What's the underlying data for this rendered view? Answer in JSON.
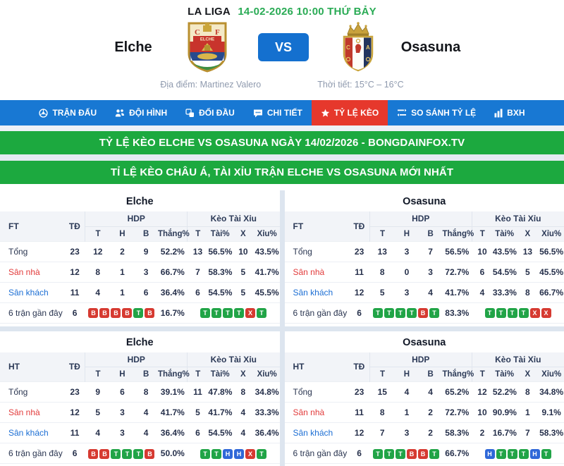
{
  "header": {
    "league": "LA LIGA",
    "datetime": "14-02-2026 10:00 THỨ BẢY",
    "home_team": "Elche",
    "away_team": "Osasuna",
    "vs_label": "VS",
    "venue": "Địa điểm: Martinez Valero",
    "weather": "Thời tiết: 15°C – 16°C",
    "home_crest_icon": "elche-crest-icon",
    "away_crest_icon": "osasuna-crest-icon"
  },
  "nav": {
    "tabs": [
      {
        "label": "TRẬN ĐẤU",
        "icon": "soccer-ball-icon",
        "active": false
      },
      {
        "label": "ĐỘI HÌNH",
        "icon": "lineup-icon",
        "active": false
      },
      {
        "label": "ĐỐI ĐẦU",
        "icon": "head-to-head-icon",
        "active": false
      },
      {
        "label": "CHI TIẾT",
        "icon": "comment-icon",
        "active": false
      },
      {
        "label": "TỶ LỆ KÈO",
        "icon": "star-icon",
        "active": true
      },
      {
        "label": "SO SÁNH TỶ LỆ",
        "icon": "compare-list-icon",
        "active": false
      },
      {
        "label": "BXH",
        "icon": "bar-chart-icon",
        "active": false
      }
    ]
  },
  "banners": [
    "TỶ LỆ KÈO ELCHE VS OSASUNA NGÀY 14/02/2026 - BONGDAINFOX.TV",
    "TỈ LỆ KÈO CHÂU Á, TÀI XỈU TRẬN ELCHE VS OSASUNA MỚI NHẤT"
  ],
  "table_headers": {
    "td": "TĐ",
    "hdp_group": "HDP",
    "tx_group": "Kèo Tài Xỉu",
    "sub": [
      "T",
      "H",
      "B",
      "Thắng%",
      "T",
      "Tài%",
      "X",
      "Xỉu%"
    ]
  },
  "tables": [
    {
      "team": "Elche",
      "period": "FT",
      "rows": [
        {
          "type": "total",
          "label": "Tổng",
          "td": "23",
          "hdp": [
            "12",
            "2",
            "9"
          ],
          "win": "52.2%",
          "tx": [
            "13",
            "56.5%",
            "10",
            "43.5%"
          ]
        },
        {
          "type": "home",
          "label": "Sân nhà",
          "td": "12",
          "hdp": [
            "8",
            "1",
            "3"
          ],
          "win": "66.7%",
          "tx": [
            "7",
            "58.3%",
            "5",
            "41.7%"
          ]
        },
        {
          "type": "away",
          "label": "Sân khách",
          "td": "11",
          "hdp": [
            "4",
            "1",
            "6"
          ],
          "win": "36.4%",
          "tx": [
            "6",
            "54.5%",
            "5",
            "45.5%"
          ]
        }
      ],
      "recent": {
        "label": "6 trận gần đây",
        "td": "6",
        "win": "16.7%",
        "hdp_badges": [
          {
            "t": "B",
            "c": "r"
          },
          {
            "t": "B",
            "c": "r"
          },
          {
            "t": "B",
            "c": "r"
          },
          {
            "t": "B",
            "c": "r"
          },
          {
            "t": "T",
            "c": "g"
          },
          {
            "t": "B",
            "c": "r"
          }
        ],
        "tx_badges": [
          {
            "t": "T",
            "c": "g"
          },
          {
            "t": "T",
            "c": "g"
          },
          {
            "t": "T",
            "c": "g"
          },
          {
            "t": "T",
            "c": "g"
          },
          {
            "t": "X",
            "c": "r"
          },
          {
            "t": "T",
            "c": "g"
          }
        ]
      }
    },
    {
      "team": "Osasuna",
      "period": "FT",
      "rows": [
        {
          "type": "total",
          "label": "Tổng",
          "td": "23",
          "hdp": [
            "13",
            "3",
            "7"
          ],
          "win": "56.5%",
          "tx": [
            "10",
            "43.5%",
            "13",
            "56.5%"
          ]
        },
        {
          "type": "home",
          "label": "Sân nhà",
          "td": "11",
          "hdp": [
            "8",
            "0",
            "3"
          ],
          "win": "72.7%",
          "tx": [
            "6",
            "54.5%",
            "5",
            "45.5%"
          ]
        },
        {
          "type": "away",
          "label": "Sân khách",
          "td": "12",
          "hdp": [
            "5",
            "3",
            "4"
          ],
          "win": "41.7%",
          "tx": [
            "4",
            "33.3%",
            "8",
            "66.7%"
          ]
        }
      ],
      "recent": {
        "label": "6 trận gần đây",
        "td": "6",
        "win": "83.3%",
        "hdp_badges": [
          {
            "t": "T",
            "c": "g"
          },
          {
            "t": "T",
            "c": "g"
          },
          {
            "t": "T",
            "c": "g"
          },
          {
            "t": "T",
            "c": "g"
          },
          {
            "t": "B",
            "c": "r"
          },
          {
            "t": "T",
            "c": "g"
          }
        ],
        "tx_badges": [
          {
            "t": "T",
            "c": "g"
          },
          {
            "t": "T",
            "c": "g"
          },
          {
            "t": "T",
            "c": "g"
          },
          {
            "t": "T",
            "c": "g"
          },
          {
            "t": "X",
            "c": "r"
          },
          {
            "t": "X",
            "c": "r"
          }
        ]
      }
    },
    {
      "team": "Elche",
      "period": "HT",
      "rows": [
        {
          "type": "total",
          "label": "Tổng",
          "td": "23",
          "hdp": [
            "9",
            "6",
            "8"
          ],
          "win": "39.1%",
          "tx": [
            "11",
            "47.8%",
            "8",
            "34.8%"
          ]
        },
        {
          "type": "home",
          "label": "Sân nhà",
          "td": "12",
          "hdp": [
            "5",
            "3",
            "4"
          ],
          "win": "41.7%",
          "tx": [
            "5",
            "41.7%",
            "4",
            "33.3%"
          ]
        },
        {
          "type": "away",
          "label": "Sân khách",
          "td": "11",
          "hdp": [
            "4",
            "3",
            "4"
          ],
          "win": "36.4%",
          "tx": [
            "6",
            "54.5%",
            "4",
            "36.4%"
          ]
        }
      ],
      "recent": {
        "label": "6 trận gần đây",
        "td": "6",
        "win": "50.0%",
        "hdp_badges": [
          {
            "t": "B",
            "c": "r"
          },
          {
            "t": "B",
            "c": "r"
          },
          {
            "t": "T",
            "c": "g"
          },
          {
            "t": "T",
            "c": "g"
          },
          {
            "t": "T",
            "c": "g"
          },
          {
            "t": "B",
            "c": "r"
          }
        ],
        "tx_badges": [
          {
            "t": "T",
            "c": "g"
          },
          {
            "t": "T",
            "c": "g"
          },
          {
            "t": "H",
            "c": "b"
          },
          {
            "t": "H",
            "c": "b"
          },
          {
            "t": "X",
            "c": "r"
          },
          {
            "t": "T",
            "c": "g"
          }
        ]
      }
    },
    {
      "team": "Osasuna",
      "period": "HT",
      "rows": [
        {
          "type": "total",
          "label": "Tổng",
          "td": "23",
          "hdp": [
            "15",
            "4",
            "4"
          ],
          "win": "65.2%",
          "tx": [
            "12",
            "52.2%",
            "8",
            "34.8%"
          ]
        },
        {
          "type": "home",
          "label": "Sân nhà",
          "td": "11",
          "hdp": [
            "8",
            "1",
            "2"
          ],
          "win": "72.7%",
          "tx": [
            "10",
            "90.9%",
            "1",
            "9.1%"
          ]
        },
        {
          "type": "away",
          "label": "Sân khách",
          "td": "12",
          "hdp": [
            "7",
            "3",
            "2"
          ],
          "win": "58.3%",
          "tx": [
            "2",
            "16.7%",
            "7",
            "58.3%"
          ]
        }
      ],
      "recent": {
        "label": "6 trận gần đây",
        "td": "6",
        "win": "66.7%",
        "hdp_badges": [
          {
            "t": "T",
            "c": "g"
          },
          {
            "t": "T",
            "c": "g"
          },
          {
            "t": "T",
            "c": "g"
          },
          {
            "t": "B",
            "c": "r"
          },
          {
            "t": "B",
            "c": "r"
          },
          {
            "t": "T",
            "c": "g"
          }
        ],
        "tx_badges": [
          {
            "t": "H",
            "c": "b"
          },
          {
            "t": "T",
            "c": "g"
          },
          {
            "t": "T",
            "c": "g"
          },
          {
            "t": "T",
            "c": "g"
          },
          {
            "t": "H",
            "c": "b"
          },
          {
            "t": "T",
            "c": "g"
          }
        ]
      }
    }
  ],
  "colors": {
    "nav_blue": "#1878d3",
    "active_tab_red": "#e6382c",
    "banner_green": "#1ca93f",
    "date_green": "#2aab55",
    "vs_blue": "#1470cf",
    "win_green": "#21a447",
    "loss_red": "#d63a31",
    "draw_blue": "#2f68d8",
    "home_label_red": "#e23b3b",
    "away_label_blue": "#1d6fd4"
  }
}
